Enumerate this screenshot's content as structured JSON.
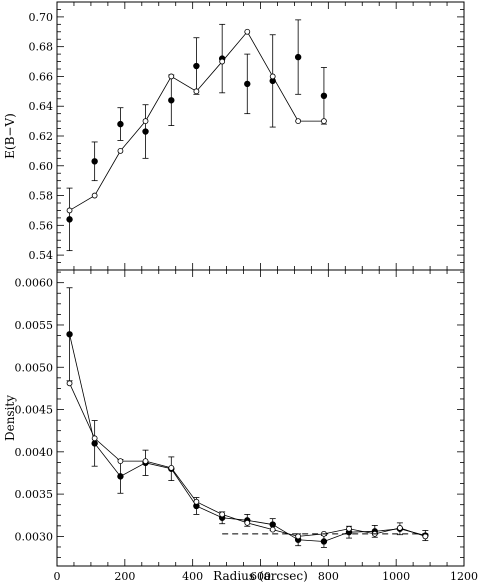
{
  "chart_data": [
    {
      "type": "scatter",
      "ylabel": "E(B−V)",
      "xlim": [
        0,
        1200
      ],
      "ylim": [
        0.53,
        0.71
      ],
      "yticks": [
        0.54,
        0.56,
        0.58,
        0.6,
        0.62,
        0.64,
        0.66,
        0.68,
        0.7
      ],
      "ytick_labels": [
        "0.54",
        "0.56",
        "0.58",
        "0.60",
        "0.62",
        "0.64",
        "0.66",
        "0.68",
        "0.70"
      ],
      "series": [
        {
          "marker": "filled-circle",
          "connected": false,
          "x": [
            37,
            111,
            187,
            261,
            337,
            411,
            487,
            561,
            636,
            711,
            787
          ],
          "y": [
            0.564,
            0.603,
            0.628,
            0.623,
            0.644,
            0.667,
            0.672,
            0.655,
            0.657,
            0.673,
            0.647
          ],
          "err": [
            0.021,
            0.013,
            0.011,
            0.018,
            0.017,
            0.019,
            0.023,
            0.02,
            0.031,
            0.025,
            0.019
          ]
        },
        {
          "marker": "open-circle",
          "connected": true,
          "x": [
            37,
            111,
            187,
            261,
            337,
            411,
            487,
            561,
            636,
            711,
            787
          ],
          "y": [
            0.57,
            0.58,
            0.61,
            0.63,
            0.66,
            0.65,
            0.67,
            0.69,
            0.66,
            0.63,
            0.63
          ]
        }
      ]
    },
    {
      "type": "line",
      "xlabel": "Radius (arcsec)",
      "ylabel": "Density",
      "xlim": [
        0,
        1200
      ],
      "ylim": [
        0.00265,
        0.00615
      ],
      "xticks": [
        0,
        200,
        400,
        600,
        800,
        1000,
        1200
      ],
      "xtick_labels": [
        "0",
        "200",
        "400",
        "600",
        "800",
        "1000",
        "1200"
      ],
      "yticks": [
        0.003,
        0.0035,
        0.004,
        0.0045,
        0.005,
        0.0055,
        0.006
      ],
      "ytick_labels": [
        "0.0030",
        "0.0035",
        "0.0040",
        "0.0045",
        "0.0050",
        "0.0055",
        "0.0060"
      ],
      "series": [
        {
          "marker": "filled-circle",
          "x": [
            37,
            111,
            187,
            261,
            337,
            411,
            487,
            561,
            636,
            711,
            787,
            861,
            937,
            1011,
            1086
          ],
          "y": [
            0.00539,
            0.0041,
            0.00371,
            0.00387,
            0.0038,
            0.00336,
            0.00322,
            0.00319,
            0.00314,
            0.00296,
            0.00294,
            0.00305,
            0.00306,
            0.00309,
            0.00301
          ],
          "err": [
            0.00055,
            0.00027,
            0.0002,
            0.00015,
            0.00014,
            0.0001,
            7e-05,
            7e-05,
            7e-05,
            7e-05,
            7e-05,
            7e-05,
            7e-05,
            7e-05,
            6e-05
          ]
        },
        {
          "marker": "open-circle",
          "x": [
            37,
            111,
            187,
            261,
            337,
            411,
            487,
            561,
            636,
            711,
            787,
            861,
            937,
            1011,
            1086
          ],
          "y": [
            0.00481,
            0.00416,
            0.00389,
            0.00389,
            0.00381,
            0.00341,
            0.00326,
            0.00316,
            0.00308,
            0.003,
            0.00303,
            0.00309,
            0.00303,
            0.0031,
            0.003
          ]
        },
        {
          "style": "dashed",
          "x": [
            487,
            1100
          ],
          "y": [
            0.00303,
            0.00303
          ]
        }
      ]
    }
  ]
}
